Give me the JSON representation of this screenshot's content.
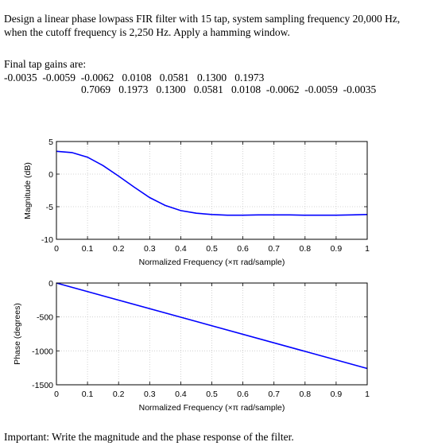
{
  "problem": {
    "line1": "Design a linear phase lowpass FIR filter with 15 tap, system sampling frequency 20,000 Hz,",
    "line2": "when the cutoff frequency is 2,250 Hz. Apply a hamming window.",
    "gains_title": "Final tap gains are:",
    "gains_line1": "-0.0035  -0.0059  -0.0062   0.0108   0.0581   0.1300   0.1973",
    "gains_line2": "0.7069   0.1973   0.1300   0.0581   0.0108  -0.0062  -0.0059  -0.0035",
    "footer": "Important: Write the magnitude and the phase response of the filter."
  },
  "chart_data": [
    {
      "type": "line",
      "xlabel": "Normalized Frequency  (×π rad/sample)",
      "ylabel": "Magnitude (dB)",
      "xlim": [
        0,
        1
      ],
      "ylim": [
        -10,
        5
      ],
      "xticks": [
        "0",
        "0.1",
        "0.2",
        "0.3",
        "0.4",
        "0.5",
        "0.6",
        "0.7",
        "0.8",
        "0.9",
        "1"
      ],
      "yticks": [
        "5",
        "0",
        "-5",
        "-10"
      ],
      "ytick_values": [
        5,
        0,
        -5,
        -10
      ],
      "grid": true,
      "line_color": "#0000ff",
      "x": [
        0,
        0.05,
        0.1,
        0.15,
        0.2,
        0.25,
        0.3,
        0.35,
        0.4,
        0.45,
        0.5,
        0.55,
        0.6,
        0.65,
        0.7,
        0.75,
        0.8,
        0.85,
        0.9,
        0.95,
        1.0
      ],
      "y": [
        3.5,
        3.3,
        2.6,
        1.3,
        -0.3,
        -2.0,
        -3.6,
        -4.8,
        -5.6,
        -6.0,
        -6.2,
        -6.3,
        -6.3,
        -6.25,
        -6.25,
        -6.25,
        -6.3,
        -6.3,
        -6.3,
        -6.25,
        -6.2
      ]
    },
    {
      "type": "line",
      "xlabel": "Normalized Frequency  (×π rad/sample)",
      "ylabel": "Phase (degrees)",
      "xlim": [
        0,
        1
      ],
      "ylim": [
        -1500,
        0
      ],
      "xticks": [
        "0",
        "0.1",
        "0.2",
        "0.3",
        "0.4",
        "0.5",
        "0.6",
        "0.7",
        "0.8",
        "0.9",
        "1"
      ],
      "yticks": [
        "0",
        "-500",
        "-1000",
        "-1500"
      ],
      "ytick_values": [
        0,
        -500,
        -1000,
        -1500
      ],
      "grid": true,
      "line_color": "#0000ff",
      "x": [
        0,
        1
      ],
      "y": [
        0,
        -1260
      ]
    }
  ]
}
